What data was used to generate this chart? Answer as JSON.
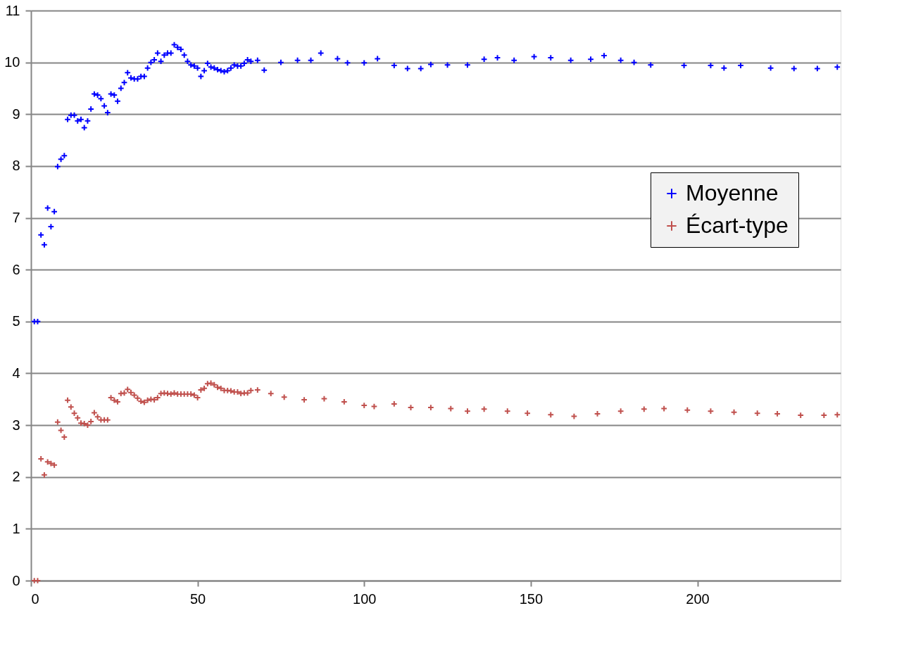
{
  "chart_data": {
    "type": "scatter",
    "marker": "cross",
    "grid": "y",
    "legend": "right",
    "xlim": [
      0,
      243
    ],
    "xticks": [
      0,
      50,
      100,
      150,
      200
    ],
    "ylim": [
      0,
      11
    ],
    "yticks": [
      0,
      1,
      2,
      3,
      4,
      5,
      6,
      7,
      8,
      9,
      10,
      11
    ],
    "series": [
      {
        "name": "Moyenne",
        "color": "#0000ff",
        "x": [
          1,
          2,
          3,
          4,
          5,
          6,
          7,
          8,
          9,
          10,
          11,
          12,
          13,
          14,
          15,
          16,
          17,
          18,
          19,
          20,
          21,
          22,
          23,
          24,
          25,
          26,
          27,
          28,
          29,
          30,
          31,
          32,
          33,
          34,
          35,
          36,
          37,
          38,
          39,
          40,
          41,
          42,
          43,
          44,
          45,
          46,
          47,
          48,
          49,
          50,
          51,
          52,
          53,
          54,
          55,
          56,
          57,
          58,
          59,
          60,
          61,
          62,
          63,
          64,
          65,
          66,
          68,
          70,
          75,
          80,
          84,
          87,
          92,
          95,
          100,
          104,
          109,
          113,
          117,
          120,
          125,
          131,
          136,
          140,
          145,
          151,
          156,
          162,
          168,
          172,
          177,
          181,
          186,
          196,
          204,
          208,
          213,
          222,
          229,
          236,
          242
        ],
        "values": [
          5.0,
          5.0,
          6.67,
          6.48,
          7.19,
          6.83,
          7.12,
          7.99,
          8.13,
          8.2,
          8.9,
          8.98,
          8.98,
          8.87,
          8.9,
          8.74,
          8.87,
          9.1,
          9.39,
          9.37,
          9.3,
          9.16,
          9.03,
          9.39,
          9.37,
          9.25,
          9.5,
          9.61,
          9.8,
          9.7,
          9.68,
          9.68,
          9.73,
          9.73,
          9.89,
          10.0,
          10.05,
          10.18,
          10.02,
          10.14,
          10.18,
          10.18,
          10.34,
          10.29,
          10.25,
          10.14,
          10.02,
          9.95,
          9.93,
          9.89,
          9.73,
          9.84,
          9.98,
          9.91,
          9.89,
          9.86,
          9.84,
          9.82,
          9.84,
          9.89,
          9.95,
          9.93,
          9.93,
          9.98,
          10.05,
          10.02,
          10.04,
          9.85,
          10.0,
          10.04,
          10.04,
          10.18,
          10.07,
          9.99,
          9.99,
          10.07,
          9.94,
          9.88,
          9.88,
          9.96,
          9.95,
          9.95,
          10.06,
          10.09,
          10.04,
          10.11,
          10.09,
          10.04,
          10.06,
          10.13,
          10.04,
          10.0,
          9.95,
          9.94,
          9.94,
          9.89,
          9.94,
          9.89,
          9.88,
          9.88,
          9.91
        ]
      },
      {
        "name": "Écart-type",
        "color": "#c0504d",
        "x": [
          1,
          2,
          3,
          4,
          5,
          6,
          7,
          8,
          9,
          10,
          11,
          12,
          13,
          14,
          15,
          16,
          17,
          18,
          19,
          20,
          21,
          22,
          23,
          24,
          25,
          26,
          27,
          28,
          29,
          30,
          31,
          32,
          33,
          34,
          35,
          36,
          37,
          38,
          39,
          40,
          41,
          42,
          43,
          44,
          45,
          46,
          47,
          48,
          49,
          50,
          51,
          52,
          53,
          54,
          55,
          56,
          57,
          58,
          59,
          60,
          61,
          62,
          63,
          64,
          65,
          66,
          68,
          72,
          76,
          82,
          88,
          94,
          100,
          103,
          109,
          114,
          120,
          126,
          131,
          136,
          143,
          149,
          156,
          163,
          170,
          177,
          184,
          190,
          197,
          204,
          211,
          218,
          224,
          231,
          238,
          242
        ],
        "values": [
          0,
          0,
          2.35,
          2.04,
          2.29,
          2.26,
          2.23,
          3.06,
          2.9,
          2.77,
          3.48,
          3.35,
          3.23,
          3.14,
          3.04,
          3.03,
          3.0,
          3.07,
          3.24,
          3.16,
          3.1,
          3.1,
          3.1,
          3.53,
          3.48,
          3.45,
          3.61,
          3.62,
          3.69,
          3.63,
          3.58,
          3.52,
          3.46,
          3.44,
          3.48,
          3.5,
          3.49,
          3.53,
          3.61,
          3.62,
          3.61,
          3.6,
          3.62,
          3.6,
          3.6,
          3.6,
          3.6,
          3.6,
          3.58,
          3.53,
          3.68,
          3.71,
          3.8,
          3.81,
          3.78,
          3.73,
          3.71,
          3.67,
          3.67,
          3.66,
          3.64,
          3.64,
          3.61,
          3.62,
          3.62,
          3.67,
          3.68,
          3.61,
          3.54,
          3.49,
          3.51,
          3.45,
          3.38,
          3.36,
          3.41,
          3.34,
          3.34,
          3.32,
          3.27,
          3.31,
          3.27,
          3.23,
          3.2,
          3.17,
          3.22,
          3.27,
          3.31,
          3.32,
          3.29,
          3.27,
          3.25,
          3.23,
          3.22,
          3.19,
          3.19,
          3.2
        ]
      }
    ]
  }
}
